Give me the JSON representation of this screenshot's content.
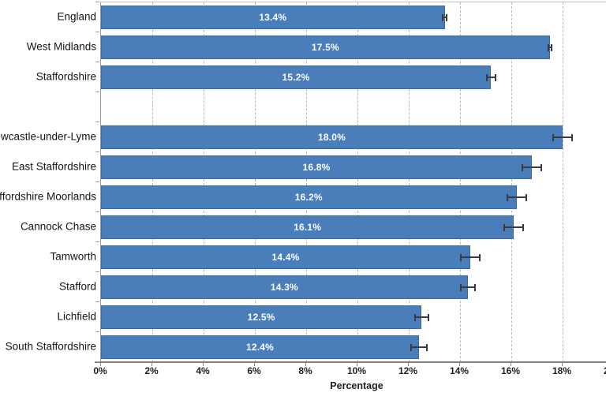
{
  "chart_data": {
    "type": "bar",
    "orientation": "horizontal",
    "title": "",
    "xlabel": "Percentage",
    "ylabel": "",
    "xlim": [
      0,
      20
    ],
    "xtick_step": 2,
    "xticks": [
      "0%",
      "2%",
      "4%",
      "6%",
      "8%",
      "10%",
      "12%",
      "14%",
      "16%",
      "18%",
      "20%"
    ],
    "grid": "vertical-dashed",
    "legend": "none",
    "bar_color": "#4a7ebb",
    "bar_border_color": "#3c6ca8",
    "error_bar_color": "#3a3a3a",
    "groups": [
      {
        "name": "benchmark-areas",
        "items": [
          {
            "label": "England",
            "value": 13.4,
            "display": "13.4%",
            "error": 0.1
          },
          {
            "label": "West Midlands",
            "value": 17.5,
            "display": "17.5%",
            "error": 0.1
          },
          {
            "label": "Staffordshire",
            "value": 15.2,
            "display": "15.2%",
            "error": 0.2
          }
        ]
      },
      {
        "name": "districts",
        "items": [
          {
            "label": "Newcastle-under-Lyme",
            "value": 18.0,
            "display": "18.0%",
            "error": 0.4
          },
          {
            "label": "East Staffordshire",
            "value": 16.8,
            "display": "16.8%",
            "error": 0.4
          },
          {
            "label": "Staffordshire Moorlands",
            "value": 16.2,
            "display": "16.2%",
            "error": 0.4
          },
          {
            "label": "Cannock Chase",
            "value": 16.1,
            "display": "16.1%",
            "error": 0.4
          },
          {
            "label": "Tamworth",
            "value": 14.4,
            "display": "14.4%",
            "error": 0.4
          },
          {
            "label": "Stafford",
            "value": 14.3,
            "display": "14.3%",
            "error": 0.3
          },
          {
            "label": "Lichfield",
            "value": 12.5,
            "display": "12.5%",
            "error": 0.3
          },
          {
            "label": "South Staffordshire",
            "value": 12.4,
            "display": "12.4%",
            "error": 0.35
          }
        ]
      }
    ]
  }
}
